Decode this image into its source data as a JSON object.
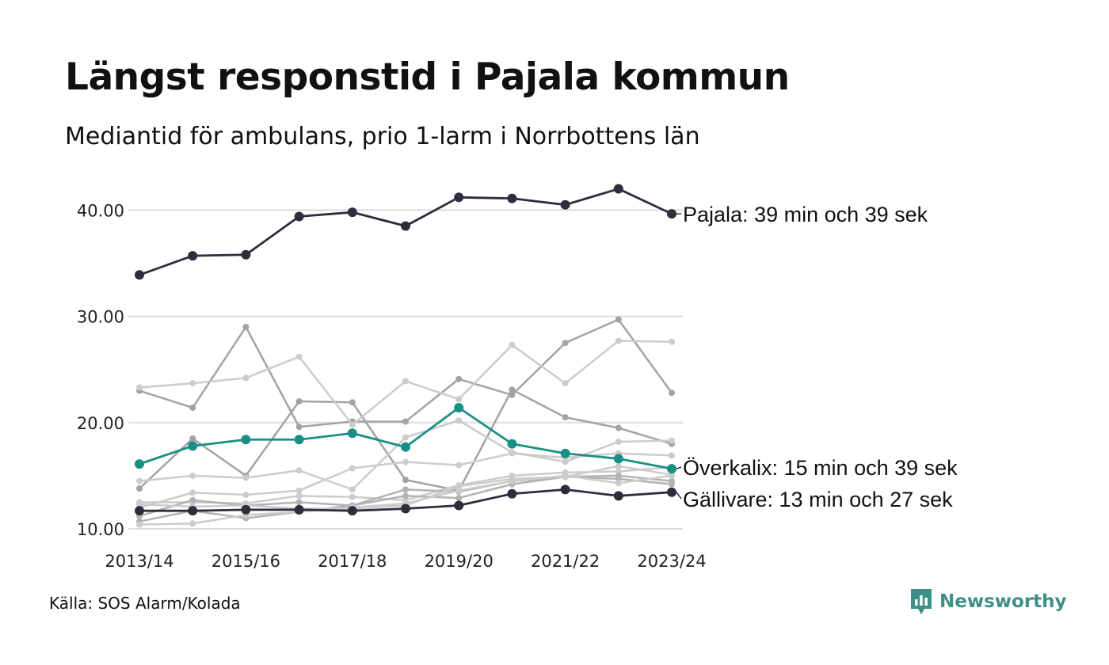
{
  "title": "Längst responstid i Pajala kommun",
  "subtitle": "Mediantid för ambulans, prio 1-larm i Norrbottens län",
  "source": "Källa: SOS Alarm/Kolada",
  "logo": {
    "text": "Newsworthy",
    "icon": "newsworthy-chart-bubble-icon"
  },
  "colors": {
    "highlight_dark": "#2e2d3e",
    "highlight_teal": "#1a9085",
    "gray_light": "#cccccc",
    "gray_mid": "#b3b3b3",
    "gray_dark": "#a3a3a3",
    "grid": "#dddddd",
    "logo": "#3d8f88"
  },
  "chart_data": {
    "type": "line",
    "x": [
      "2013/14",
      "2014/15",
      "2015/16",
      "2016/17",
      "2017/18",
      "2018/19",
      "2019/20",
      "2020/21",
      "2021/22",
      "2022/23",
      "2023/24"
    ],
    "x_tick_labels": [
      "2013/14",
      "2015/16",
      "2017/18",
      "2019/20",
      "2021/22",
      "2023/24"
    ],
    "y_ticks": [
      10,
      20,
      30,
      40
    ],
    "y_tick_labels": [
      "10.00",
      "20.00",
      "30.00",
      "40.00"
    ],
    "ylim": [
      10,
      43
    ],
    "grid": true,
    "highlighted_series": [
      {
        "values": [
          33.9,
          35.7,
          35.8,
          39.4,
          39.8,
          38.5,
          41.2,
          41.1,
          40.5,
          42.0,
          39.65
        ],
        "color": "#2e2d3e",
        "label": "Pajala: 39 min och 39 sek"
      },
      {
        "values": [
          16.1,
          17.8,
          18.4,
          18.4,
          19.0,
          17.7,
          21.4,
          18.0,
          17.1,
          16.6,
          15.65
        ],
        "color": "#1a9085",
        "label": "Överkalix: 15 min och 39 sek"
      },
      {
        "values": [
          11.7,
          11.7,
          11.8,
          11.8,
          11.7,
          11.9,
          12.2,
          13.3,
          13.7,
          13.1,
          13.45
        ],
        "color": "#2e2d3e",
        "label": "Gällivare: 13 min och 27 sek"
      }
    ],
    "background_series": [
      {
        "values": [
          23.0,
          21.4,
          29.0,
          19.6,
          20.1,
          20.1,
          24.1,
          22.6,
          27.5,
          29.7,
          22.8
        ],
        "color": "#a3a3a3"
      },
      {
        "values": [
          13.8,
          18.5,
          15.0,
          22.0,
          21.9,
          14.6,
          13.6,
          23.1,
          20.5,
          19.5,
          18.0
        ],
        "color": "#a3a3a3"
      },
      {
        "values": [
          23.3,
          23.7,
          24.2,
          26.2,
          19.8,
          23.9,
          22.2,
          27.3,
          23.7,
          27.7,
          27.6
        ],
        "color": "#cccccc"
      },
      {
        "values": [
          14.5,
          15.0,
          14.8,
          15.5,
          13.7,
          18.6,
          20.2,
          17.2,
          16.3,
          18.2,
          18.3
        ],
        "color": "#cccccc"
      },
      {
        "values": [
          12.0,
          13.4,
          13.2,
          13.6,
          15.7,
          16.3,
          16.0,
          17.1,
          16.7,
          17.1,
          16.9
        ],
        "color": "#cccccc"
      },
      {
        "values": [
          12.5,
          12.5,
          12.4,
          13.1,
          13.0,
          12.7,
          14.1,
          15.0,
          15.3,
          15.4,
          15.8
        ],
        "color": "#cccccc"
      },
      {
        "values": [
          11.2,
          12.7,
          12.2,
          12.5,
          12.2,
          13.7,
          13.5,
          14.5,
          14.9,
          15.0,
          14.5
        ],
        "color": "#b3b3b3"
      },
      {
        "values": [
          10.7,
          11.7,
          11.0,
          11.6,
          12.2,
          13.1,
          12.9,
          14.2,
          14.9,
          14.7,
          14.2
        ],
        "color": "#b3b3b3"
      },
      {
        "values": [
          10.4,
          10.5,
          11.3,
          11.6,
          12.0,
          12.4,
          13.6,
          14.5,
          15.0,
          14.3,
          15.0
        ],
        "color": "#cccccc"
      },
      {
        "values": [
          12.3,
          12.1,
          12.2,
          11.9,
          11.9,
          12.2,
          14.0,
          14.7,
          14.9,
          15.9,
          15.1
        ],
        "color": "#cccccc"
      }
    ]
  }
}
